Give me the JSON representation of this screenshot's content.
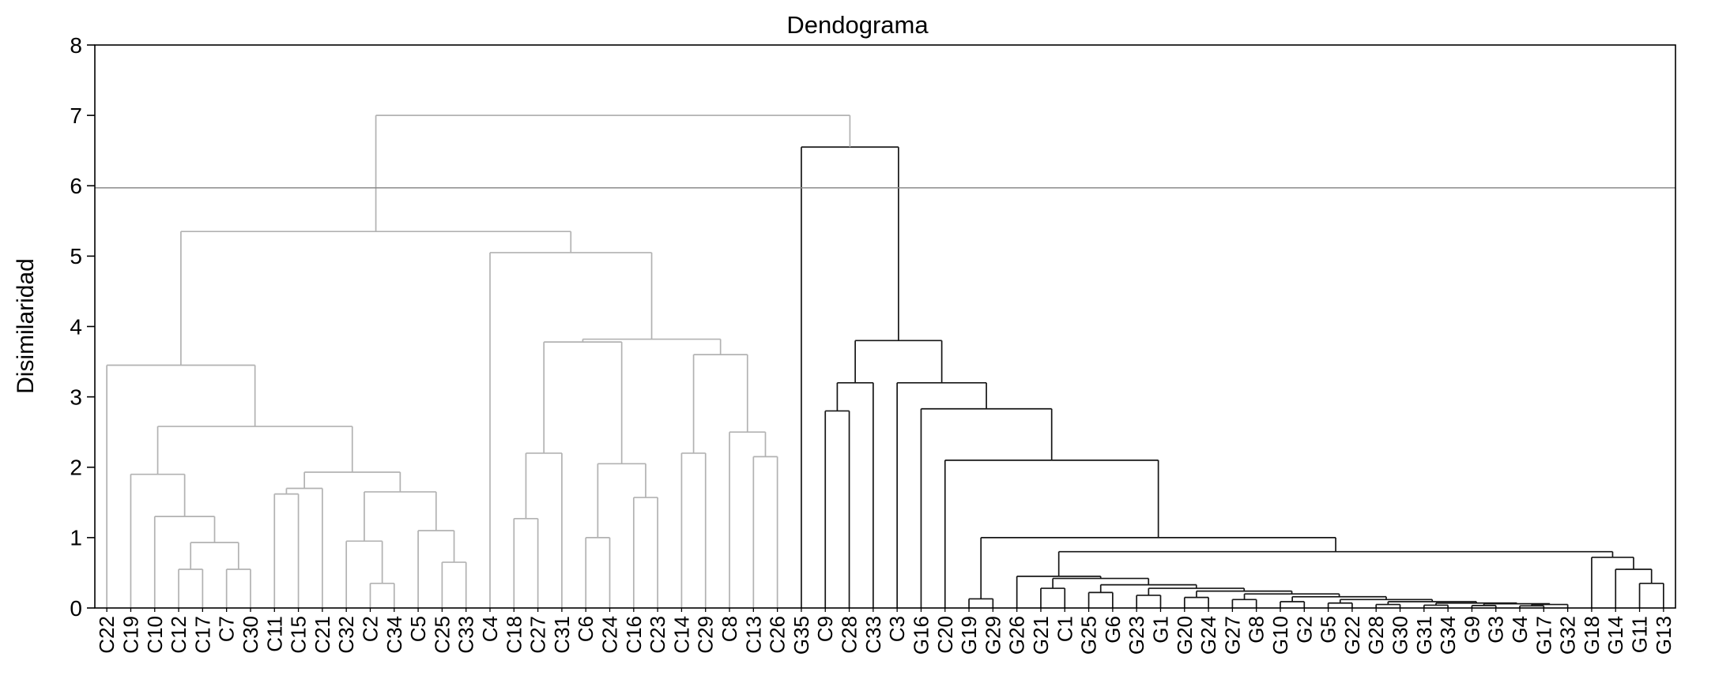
{
  "chart_data": {
    "type": "dendrogram",
    "title": "Dendograma",
    "ylabel": "Disimilaridad",
    "xlabel": "",
    "ylim": [
      0,
      8
    ],
    "yticks": [
      0,
      1,
      2,
      3,
      4,
      5,
      6,
      7,
      8
    ],
    "cut_line": 5.97,
    "grid": false,
    "colors": {
      "left_cluster": "#b2b2b2",
      "right_cluster": "#161616",
      "cut_line": "#8a8a8a",
      "axis": "#000000"
    },
    "leaves": [
      "C22",
      "C19",
      "C10",
      "C12",
      "C17",
      "C7",
      "C30",
      "C11",
      "C15",
      "C21",
      "C32",
      "C2",
      "C34",
      "C5",
      "C25",
      "C33",
      "C4",
      "C18",
      "C27",
      "C31",
      "C6",
      "C24",
      "C16",
      "C23",
      "C14",
      "C29",
      "C8",
      "C13",
      "C26",
      "G35",
      "C9",
      "C28",
      "C33",
      "C3",
      "G16",
      "C20",
      "G19",
      "G29",
      "G26",
      "G21",
      "C1",
      "G25",
      "G6",
      "G23",
      "G1",
      "G20",
      "G24",
      "G27",
      "G8",
      "G10",
      "G2",
      "G5",
      "G22",
      "G28",
      "G30",
      "G31",
      "G34",
      "G9",
      "G3",
      "G4",
      "G17",
      "G32",
      "G18",
      "G14",
      "G11",
      "G13"
    ],
    "tree": [
      7.0,
      [
        5.35,
        [
          3.45,
          "C22",
          [
            2.58,
            [
              1.9,
              "C19",
              [
                1.3,
                "C10",
                [
                  0.93,
                  [
                    0.55,
                    "C12",
                    "C17"
                  ],
                  [
                    0.55,
                    "C7",
                    "C30"
                  ]
                ]
              ]
            ],
            [
              1.93,
              [
                1.7,
                [
                  1.62,
                  "C11",
                  "C15"
                ],
                "C21"
              ],
              [
                1.65,
                [
                  0.95,
                  "C32",
                  [
                    0.35,
                    "C2",
                    "C34"
                  ]
                ],
                [
                  1.1,
                  "C5",
                  [
                    0.65,
                    "C25",
                    "C33"
                  ]
                ]
              ]
            ]
          ]
        ],
        [
          5.05,
          "C4",
          [
            3.82,
            [
              3.78,
              [
                2.2,
                [
                  1.27,
                  "C18",
                  "C27"
                ],
                "C31"
              ],
              [
                2.05,
                [
                  1.0,
                  "C6",
                  "C24"
                ],
                [
                  1.57,
                  "C16",
                  "C23"
                ]
              ]
            ],
            [
              3.6,
              [
                2.2,
                "C14",
                "C29"
              ],
              [
                2.5,
                "C8",
                [
                  2.15,
                  "C13",
                  "C26"
                ]
              ]
            ]
          ]
        ],
        "#b2b2b2"
      ],
      [
        6.55,
        "G35",
        [
          3.8,
          [
            3.2,
            [
              2.8,
              "C9",
              "C28"
            ],
            "C33"
          ],
          [
            3.2,
            "C3",
            [
              2.83,
              "G16",
              [
                2.1,
                "C20",
                [
                  1.0,
                  [
                    0.13,
                    "G19",
                    "G29"
                  ],
                  [
                    0.8,
                    [
                      0.45,
                      "G26",
                      [
                        0.42,
                        [
                          0.28,
                          "G21",
                          "C1"
                        ],
                        [
                          0.33,
                          [
                            0.22,
                            "G25",
                            "G6"
                          ],
                          [
                            0.28,
                            [
                              0.18,
                              "G23",
                              "G1"
                            ],
                            [
                              0.24,
                              [
                                0.15,
                                "G20",
                                "G24"
                              ],
                              [
                                0.2,
                                [
                                  0.12,
                                  "G27",
                                  "G8"
                                ],
                                [
                                  0.16,
                                  [
                                    0.09,
                                    "G10",
                                    "G2"
                                  ],
                                  [
                                    0.12,
                                    [
                                      0.07,
                                      "G5",
                                      "G22"
                                    ],
                                    [
                                      0.09,
                                      [
                                        0.05,
                                        "G28",
                                        "G30"
                                      ],
                                      [
                                        0.07,
                                        [
                                          0.04,
                                          "G31",
                                          "G34"
                                        ],
                                        [
                                          0.06,
                                          [
                                            0.035,
                                            "G9",
                                            "G3"
                                          ],
                                          [
                                            0.05,
                                            [
                                              0.03,
                                              "G4",
                                              "G17"
                                            ],
                                            "G32"
                                          ]
                                        ]
                                      ]
                                    ]
                                  ]
                                ]
                              ]
                            ]
                          ]
                        ]
                      ]
                    ],
                    [
                      0.72,
                      "G18",
                      [
                        0.55,
                        "G14",
                        [
                          0.35,
                          "G11",
                          "G13"
                        ]
                      ]
                    ]
                  ]
                ]
              ]
            ]
          ]
        ],
        "#161616"
      ],
      "#b2b2b2"
    ]
  }
}
